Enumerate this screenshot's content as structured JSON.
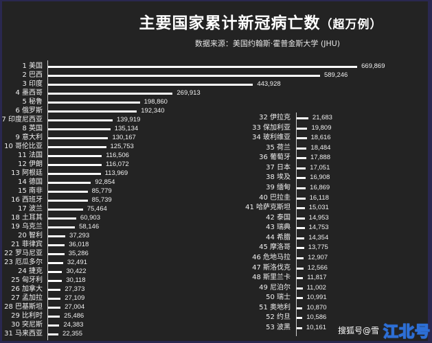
{
  "header": {
    "title": "主要国家累计新冠病亡数",
    "title_suffix": "（超万例）",
    "source": "数据来源：美国约翰斯·霍普金斯大学 (JHU)"
  },
  "watermark": {
    "text": "搜狐号@雪",
    "brand": "江北号"
  },
  "colors": {
    "background": "#232323",
    "bar": "#ffffff",
    "text": "#f0f0f0",
    "border": "#2a2850",
    "brand": "#2d6fd6"
  },
  "chart_data": {
    "type": "bar",
    "orientation": "horizontal",
    "title": "主要国家累计新冠病亡数（超万例）",
    "subtitle": "数据来源：美国约翰斯·霍普金斯大学 (JHU)",
    "xlabel": "",
    "ylabel": "",
    "grid": false,
    "data_labels": true,
    "panels": [
      {
        "categories": [
          "1 美国",
          "2 巴西",
          "3 印度",
          "4 墨西哥",
          "5 秘鲁",
          "6 俄罗斯",
          "7 印度尼西亚",
          "8 英国",
          "9 意大利",
          "10 哥伦比亚",
          "11 法国",
          "12 伊朗",
          "13 阿根廷",
          "14 德国",
          "15 南非",
          "16 西班牙",
          "17 波兰",
          "18 土耳其",
          "19 乌克兰",
          "20 智利",
          "21 菲律宾",
          "22 罗马尼亚",
          "23 厄瓜多尔",
          "24 捷克",
          "25 匈牙利",
          "26 加拿大",
          "27 孟加拉",
          "28 巴基斯坦",
          "29 比利时",
          "30 突尼斯",
          "31 马来西亚"
        ],
        "values": [
          669869,
          589246,
          443928,
          269913,
          198860,
          192340,
          139919,
          135134,
          130167,
          125753,
          116506,
          116072,
          113969,
          92854,
          85779,
          85739,
          75464,
          60903,
          58146,
          37293,
          36018,
          35286,
          32491,
          30422,
          30118,
          27373,
          27109,
          27004,
          25486,
          24383,
          22355
        ],
        "labels": [
          "669,869",
          "589,246",
          "443,928",
          "269,913",
          "198,860",
          "192,340",
          "139,919",
          "135,134",
          "130,167",
          "125,753",
          "116,506",
          "116,072",
          "113,969",
          "92,854",
          "85,779",
          "85,739",
          "75,464",
          "60,903",
          "58,146",
          "37,293",
          "36,018",
          "35,286",
          "32,491",
          "30,422",
          "30,118",
          "27,373",
          "27,109",
          "27,004",
          "25,486",
          "24,383",
          "22,355"
        ]
      },
      {
        "categories": [
          "32 伊拉克",
          "33 保加利亚",
          "34 玻利维亚",
          "35 荷兰",
          "36 葡萄牙",
          "37 日本",
          "38 埃及",
          "39 缅甸",
          "40 巴拉圭",
          "41 哈萨克斯坦",
          "42 泰国",
          "43 瑞典",
          "44 希腊",
          "45 摩洛哥",
          "46 危地马拉",
          "47 斯洛伐克",
          "48 斯里兰卡",
          "49 尼泊尔",
          "50 瑞士",
          "51 奥地利",
          "52 约旦",
          "53 波黑"
        ],
        "values": [
          21683,
          19809,
          18616,
          18484,
          17888,
          17051,
          16908,
          16869,
          16118,
          15031,
          14953,
          14753,
          14354,
          13775,
          12907,
          12566,
          11817,
          11002,
          10991,
          10870,
          10586,
          10161
        ],
        "labels": [
          "21,683",
          "19,809",
          "18,616",
          "18,484",
          "17,888",
          "17,051",
          "16,908",
          "16,869",
          "16,118",
          "15,031",
          "14,953",
          "14,753",
          "14,354",
          "13,775",
          "12,907",
          "12,566",
          "11,817",
          "11,002",
          "10,991",
          "10,870",
          "10,586",
          "10,161"
        ]
      }
    ]
  }
}
